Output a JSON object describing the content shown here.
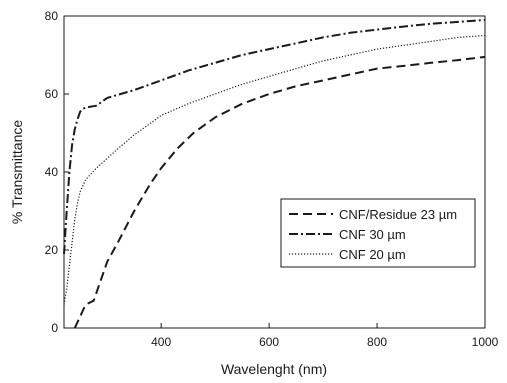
{
  "chart_data": {
    "type": "line",
    "xlabel": "Wavelenght (nm)",
    "ylabel": "% Transmittance",
    "xlim": [
      220,
      1000
    ],
    "ylim": [
      0,
      80
    ],
    "xticks": [
      400,
      600,
      800,
      1000
    ],
    "yticks": [
      0,
      20,
      40,
      60,
      80
    ],
    "grid": false,
    "legend_position": "center-right",
    "series": [
      {
        "name": "CNF/Residue 23 µm",
        "style": "dashed",
        "color": "#1a1a1a",
        "x": [
          240,
          250,
          260,
          275,
          290,
          300,
          320,
          350,
          380,
          400,
          430,
          460,
          500,
          550,
          600,
          650,
          700,
          750,
          800,
          850,
          900,
          950,
          1000
        ],
        "y": [
          0,
          3,
          6,
          7,
          13,
          17,
          22,
          30,
          37,
          41,
          46,
          50,
          54,
          57.5,
          60,
          62,
          63.5,
          65,
          66.5,
          67.2,
          68,
          68.7,
          69.5
        ]
      },
      {
        "name": "CNF 30 µm",
        "style": "dashdot",
        "color": "#1a1a1a",
        "x": [
          220,
          225,
          230,
          235,
          240,
          245,
          250,
          255,
          260,
          280,
          300,
          350,
          400,
          450,
          500,
          550,
          600,
          650,
          700,
          750,
          800,
          850,
          900,
          950,
          1000
        ],
        "y": [
          19,
          30,
          40,
          47,
          51,
          53.5,
          55.5,
          56.2,
          56.5,
          57,
          59,
          61,
          63.5,
          66,
          68,
          70,
          71.5,
          73,
          74.5,
          75.7,
          76.5,
          77.3,
          78,
          78.5,
          79
        ]
      },
      {
        "name": "CNF 20 µm",
        "style": "dotted",
        "color": "#1a1a1a",
        "x": [
          220,
          225,
          230,
          235,
          240,
          245,
          250,
          260,
          270,
          280,
          300,
          320,
          350,
          380,
          400,
          450,
          500,
          550,
          600,
          650,
          700,
          750,
          800,
          850,
          900,
          950,
          1000
        ],
        "y": [
          6,
          10,
          16,
          22,
          28,
          32,
          35,
          38,
          39.5,
          41,
          43.5,
          46,
          49.5,
          52.5,
          54.5,
          57.5,
          60,
          62.5,
          64.5,
          66.5,
          68.5,
          70,
          71.5,
          72.5,
          73.5,
          74.5,
          75
        ]
      }
    ]
  }
}
